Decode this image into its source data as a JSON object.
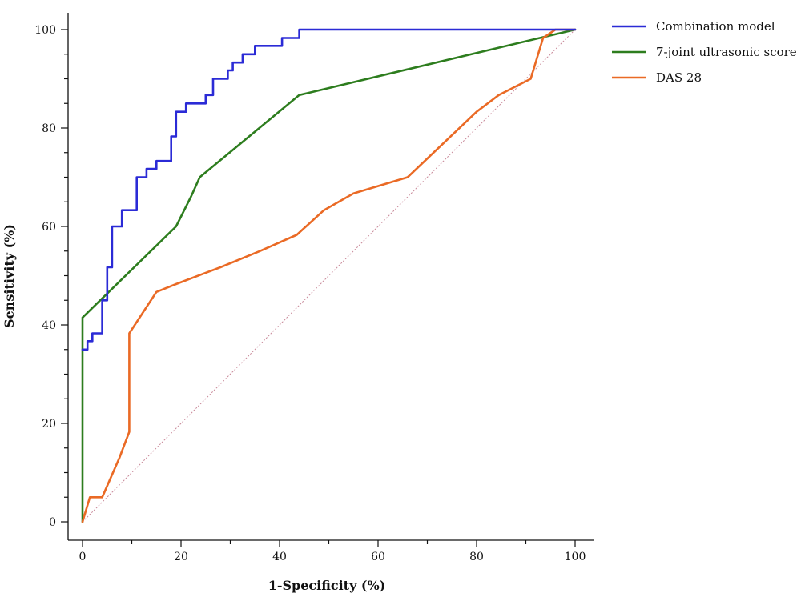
{
  "chart_data": {
    "type": "line",
    "xlabel": "1-Specificity (%)",
    "ylabel": "Sensitivity (%)",
    "xlim": [
      0,
      100
    ],
    "ylim": [
      0,
      100
    ],
    "x_ticks": [
      "0",
      "20",
      "40",
      "60",
      "80",
      "100"
    ],
    "y_ticks": [
      "0",
      "20",
      "40",
      "60",
      "80",
      "100"
    ],
    "grid": false,
    "legend_position": "top-right",
    "reference_line": {
      "style": "dotted",
      "color": "#c98a9a",
      "from": [
        0,
        0
      ],
      "to": [
        100,
        100
      ]
    },
    "series": [
      {
        "name": "Combination model",
        "color": "#2b2bd6",
        "points": [
          [
            0,
            35
          ],
          [
            1,
            35
          ],
          [
            1,
            36.7
          ],
          [
            2,
            36.7
          ],
          [
            2,
            38.3
          ],
          [
            4,
            38.3
          ],
          [
            4,
            45
          ],
          [
            5,
            45
          ],
          [
            5,
            51.7
          ],
          [
            6,
            51.7
          ],
          [
            6,
            60
          ],
          [
            8,
            60
          ],
          [
            8,
            63.3
          ],
          [
            11,
            63.3
          ],
          [
            11,
            70
          ],
          [
            13,
            70
          ],
          [
            13,
            71.7
          ],
          [
            15,
            71.7
          ],
          [
            15,
            73.3
          ],
          [
            18,
            73.3
          ],
          [
            18,
            78.3
          ],
          [
            19,
            78.3
          ],
          [
            19,
            83.3
          ],
          [
            21,
            83.3
          ],
          [
            21,
            85
          ],
          [
            25,
            85
          ],
          [
            25,
            86.7
          ],
          [
            26.5,
            86.7
          ],
          [
            26.5,
            90
          ],
          [
            29.5,
            90
          ],
          [
            29.5,
            91.7
          ],
          [
            30.5,
            91.7
          ],
          [
            30.5,
            93.3
          ],
          [
            32.5,
            93.3
          ],
          [
            32.5,
            95
          ],
          [
            35,
            95
          ],
          [
            35,
            96.7
          ],
          [
            40.5,
            96.7
          ],
          [
            40.5,
            98.3
          ],
          [
            44,
            98.3
          ],
          [
            44,
            100
          ],
          [
            100,
            100
          ]
        ]
      },
      {
        "name": "7-joint ultrasonic score",
        "color": "#2d7d1e",
        "points": [
          [
            0,
            0
          ],
          [
            0,
            41.5
          ],
          [
            19,
            60
          ],
          [
            22,
            66
          ],
          [
            23.8,
            70
          ],
          [
            44,
            86.7
          ],
          [
            100,
            100
          ]
        ]
      },
      {
        "name": "DAS 28",
        "color": "#ea6a25",
        "points": [
          [
            0,
            0
          ],
          [
            1.5,
            5
          ],
          [
            4,
            5
          ],
          [
            7.5,
            13
          ],
          [
            9.5,
            18.3
          ],
          [
            9.5,
            38.3
          ],
          [
            15,
            46.7
          ],
          [
            19,
            48.3
          ],
          [
            28,
            51.7
          ],
          [
            36,
            55
          ],
          [
            43.5,
            58.3
          ],
          [
            49,
            63.3
          ],
          [
            55,
            66.7
          ],
          [
            66,
            70
          ],
          [
            80,
            83.3
          ],
          [
            84.5,
            86.7
          ],
          [
            91,
            90
          ],
          [
            93.5,
            98.3
          ],
          [
            96,
            100
          ],
          [
            100,
            100
          ]
        ]
      }
    ]
  }
}
